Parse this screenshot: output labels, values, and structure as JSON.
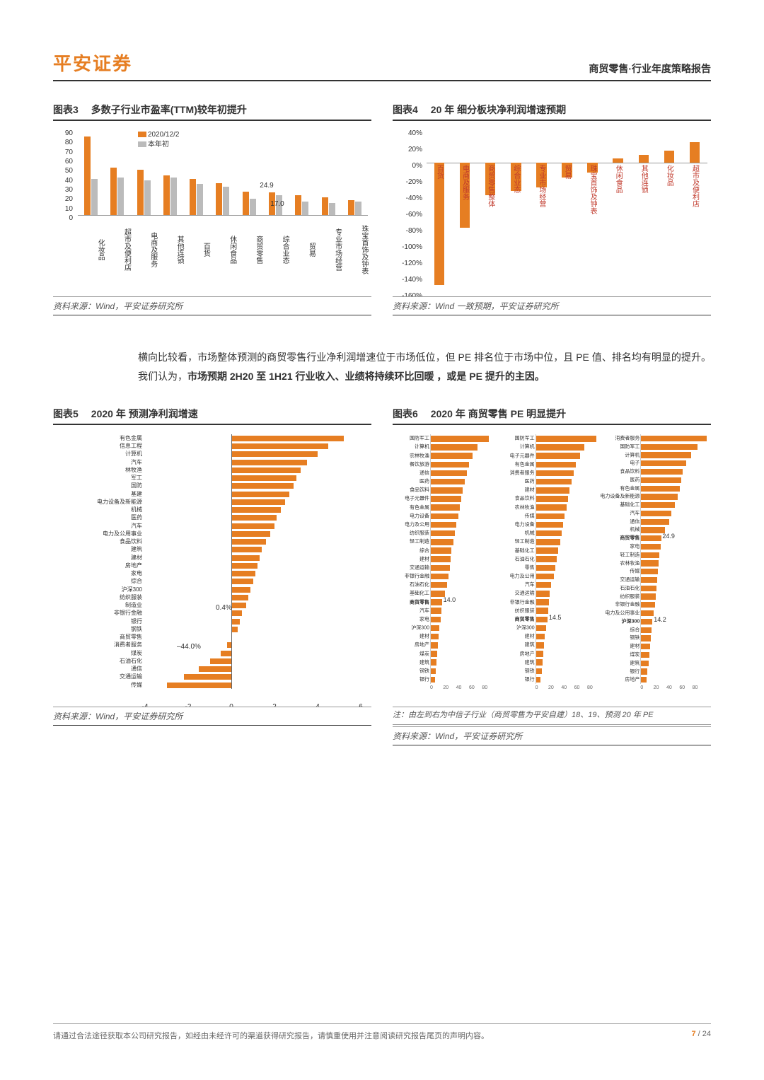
{
  "header": {
    "brand": "平安证券",
    "right": "商贸零售·行业年度策略报告"
  },
  "chart3": {
    "title_num": "图表3",
    "title_text": "多数子行业市盈率(TTM)较年初提升",
    "legend": {
      "a": "2020/12/2",
      "b": "本年初"
    },
    "ylim": [
      0,
      90
    ],
    "ytick_step": 10,
    "categories": [
      "化妆品",
      "超市及便利店",
      "电商及服务",
      "其他连锁",
      "百货",
      "休闲食品",
      "商贸零售",
      "综合业态",
      "贸易",
      "专业市场经营",
      "珠宝首饰及钟表"
    ],
    "series_a": [
      83,
      50,
      48,
      42,
      38,
      34,
      25,
      24,
      21,
      19,
      16
    ],
    "series_b": [
      38,
      40,
      37,
      40,
      33,
      30,
      17,
      21,
      14,
      13,
      14
    ],
    "annotations": {
      "a": "24.9",
      "b": "17.0"
    },
    "color_a": "#E67E22",
    "color_b": "#bbbbbb",
    "source": "资料来源：Wind，平安证券研究所"
  },
  "chart4": {
    "title_num": "图表4",
    "title_text": "20 年 细分板块净利润增速预期",
    "ylim": [
      -160,
      40
    ],
    "ytick_step": 20,
    "categories": [
      "百货",
      "电商及服务",
      "商贸零售整体",
      "综合业态",
      "专业市场经营",
      "贸易",
      "珠宝首饰及钟表",
      "休闲食品",
      "其他连锁",
      "化妆品",
      "超市及便利店"
    ],
    "values": [
      -150,
      -80,
      -40,
      -35,
      -30,
      -18,
      -12,
      5,
      10,
      15,
      25
    ],
    "bar_color": "#E67E22",
    "label_color": "#C0392B",
    "source": "资料来源：Wind 一致预期，平安证券研究所"
  },
  "para": {
    "text_a": "横向比较看，市场整体预测的商贸零售行业净利润增速位于市场低位，但 PE 排名位于市场中位，且 PE 值、排名均有明显的提升。我们认为，",
    "bold": "市场预期 2H20 至 1H21 行业收入、业绩将持续环比回暖 ，或是 PE 提升的主因。"
  },
  "chart5": {
    "title_num": "图表5",
    "title_text": "2020 年 预测净利润增速",
    "xlim": [
      -4,
      6
    ],
    "xtick_step": 2,
    "labels": [
      "有色金属",
      "信息工程",
      "计算机",
      "汽车",
      "林牧渔",
      "军工",
      "国防",
      "基建",
      "电力设备及新能源",
      "机械",
      "医药",
      "汽车",
      "电力及公用事业",
      "食品饮料",
      "建筑",
      "建材",
      "房地产",
      "家电",
      "综合",
      "沪深300",
      "纺织服装",
      "制造业",
      "非银行金融",
      "银行",
      "钢铁",
      "商贸零售",
      "消费者服务",
      "煤炭",
      "石油石化",
      "通信",
      "交通运输",
      "传媒"
    ],
    "values": [
      5.2,
      4.5,
      4.0,
      3.5,
      3.2,
      3.0,
      2.9,
      2.7,
      2.5,
      2.3,
      2.1,
      2.0,
      1.8,
      1.6,
      1.4,
      1.3,
      1.2,
      1.1,
      1.0,
      0.9,
      0.8,
      0.7,
      0.5,
      0.4,
      0.3,
      0.0,
      -0.2,
      -0.5,
      -1.0,
      -1.5,
      -2.2,
      -3.0
    ],
    "annotations": {
      "mid": "0.4%",
      "low": "–44.0%"
    },
    "bar_color": "#E67E22",
    "source": "资料来源：Wind，平安证券研究所"
  },
  "chart6": {
    "title_num": "图表6",
    "title_text": "2020 年 商贸零售 PE 明显提升",
    "panels": [
      {
        "labels": [
          "国防军工",
          "计算机",
          "农林牧渔",
          "餐饮旅游",
          "通信",
          "医药",
          "食品饮料",
          "电子元器件",
          "有色金属",
          "电力设备",
          "电力及公用",
          "纺织服装",
          "轻工制造",
          "综合",
          "建材",
          "交通运输",
          "非银行金融",
          "石油石化",
          "基础化工",
          "商贸零售",
          "汽车",
          "家电",
          "沪深300",
          "建材",
          "房地产",
          "煤炭",
          "建筑",
          "钢铁",
          "银行"
        ],
        "values": [
          72,
          58,
          52,
          48,
          45,
          42,
          40,
          38,
          36,
          34,
          32,
          30,
          28,
          26,
          25,
          24,
          22,
          20,
          18,
          14,
          13,
          12,
          11,
          10,
          9,
          8,
          7,
          6,
          5
        ],
        "xmax": 80,
        "xtick_step": 20,
        "highlight_idx": 19,
        "highlight_ann": "14.0"
      },
      {
        "labels": [
          "国防军工",
          "计算机",
          "电子元器件",
          "有色金属",
          "消费者服务",
          "医药",
          "建材",
          "食品饮料",
          "农林牧渔",
          "传媒",
          "电力设备",
          "机械",
          "轻工制造",
          "基础化工",
          "石油石化",
          "零售",
          "电力及公用",
          "汽车",
          "交通运输",
          "非银行金融",
          "纺织服装",
          "商贸零售",
          "沪深300",
          "建材",
          "建筑",
          "房地产",
          "建筑",
          "钢铁",
          "银行"
        ],
        "values": [
          75,
          60,
          55,
          50,
          47,
          44,
          42,
          40,
          38,
          36,
          34,
          32,
          30,
          28,
          26,
          24,
          22,
          19,
          17,
          16,
          15,
          14.5,
          13,
          11,
          10,
          9,
          8,
          7,
          6
        ],
        "xmax": 80,
        "xtick_step": 20,
        "highlight_idx": 21,
        "highlight_ann": "14.5"
      },
      {
        "labels": [
          "消费者服务",
          "国防军工",
          "计算机",
          "电子",
          "食品饮料",
          "医药",
          "有色金属",
          "电力设备及新能源",
          "基础化工",
          "汽车",
          "通信",
          "机械",
          "商贸零售",
          "家电",
          "轻工制造",
          "农林牧渔",
          "传媒",
          "交通运输",
          "石油石化",
          "纺织服装",
          "非银行金融",
          "电力及公用事业",
          "沪深300",
          "综合",
          "钢铁",
          "建材",
          "煤炭",
          "建筑",
          "银行",
          "房地产"
        ],
        "values": [
          82,
          70,
          62,
          56,
          52,
          50,
          48,
          46,
          42,
          38,
          35,
          30,
          24.9,
          24,
          23,
          22,
          21,
          20,
          19,
          18,
          17,
          16,
          14.2,
          13,
          12,
          11,
          10,
          9,
          8,
          7
        ],
        "xmax": 80,
        "xtick_step": 20,
        "highlight_idx": 12,
        "highlight_ann": "24.9",
        "highlight2_idx": 22,
        "highlight2_ann": "14.2"
      }
    ],
    "bar_color": "#E67E22",
    "note": "注：由左到右为中信子行业（商贸零售为平安自建）18、19、预测 20 年 PE",
    "source": "资料来源：Wind，平安证券研究所"
  },
  "footer": {
    "text": "请通过合法途径获取本公司研究报告，如经由未经许可的渠道获得研究报告，请慎重使用并注意阅读研究报告尾页的声明内容。",
    "page_current": "7",
    "page_sep": " / ",
    "page_total": "24"
  },
  "colors": {
    "accent": "#E67E22"
  }
}
